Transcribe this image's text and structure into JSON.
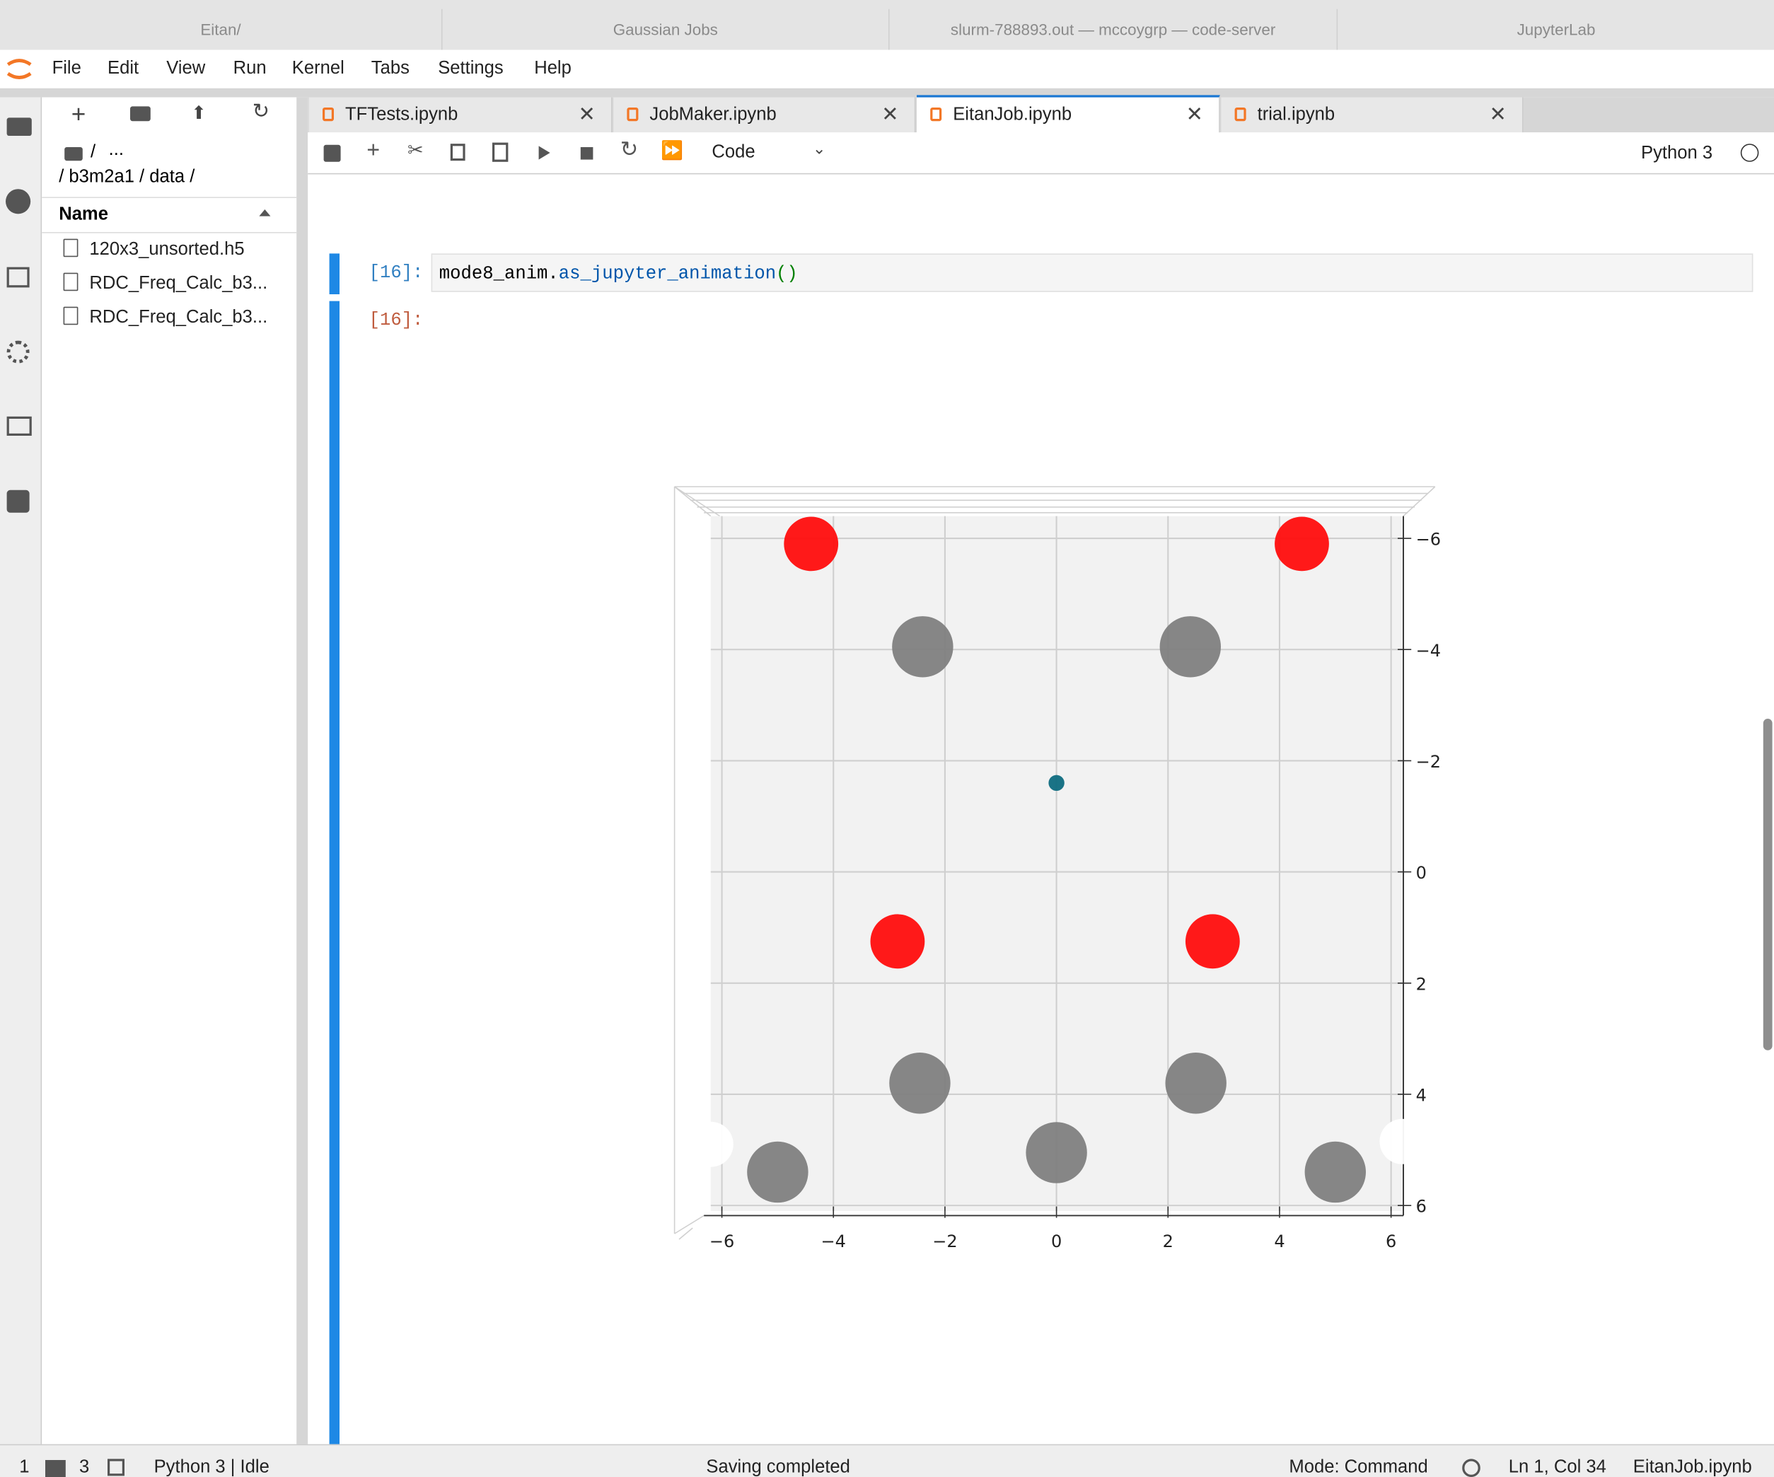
{
  "browser_tabs": [
    "Eitan/",
    "Gaussian Jobs",
    "slurm-788893.out — mccoygrp — code-server",
    "JupyterLab"
  ],
  "menu": [
    "File",
    "Edit",
    "View",
    "Run",
    "Kernel",
    "Tabs",
    "Settings",
    "Help"
  ],
  "file_browser": {
    "root": "/",
    "more": "...",
    "path": "/ b3m2a1 / data /",
    "column": "Name",
    "files": [
      "120x3_unsorted.h5",
      "RDC_Freq_Calc_b3...",
      "RDC_Freq_Calc_b3..."
    ]
  },
  "notebook_tabs": [
    "TFTests.ipynb",
    "JobMaker.ipynb",
    "EitanJob.ipynb",
    "trial.ipynb"
  ],
  "toolbar": {
    "cell_type": "Code",
    "kernel": "Python 3"
  },
  "cells": [
    {
      "prompt": "[16]:",
      "code_object": "mode8_anim.",
      "code_method": "as_jupyter_animation",
      "code_parens": "()"
    },
    {
      "prompt": "[16]:"
    }
  ],
  "chart_data": {
    "type": "scatter",
    "xlim": [
      -6.2,
      6.2
    ],
    "ylim": [
      -6.4,
      6.1
    ],
    "y_inverted": true,
    "grid": true,
    "xticks": [
      {
        "value": -6,
        "label": "−6"
      },
      {
        "value": -4,
        "label": "−4"
      },
      {
        "value": -2,
        "label": "−2"
      },
      0,
      2,
      4,
      6
    ],
    "yticks": [
      {
        "value": -6,
        "label": "−6"
      },
      {
        "value": -4,
        "label": "−4"
      },
      {
        "value": -2,
        "label": "−2"
      },
      0,
      2,
      4,
      6
    ],
    "series": [
      {
        "color": "#ff0d0d",
        "size": 24,
        "x": [
          -4.4,
          4.4,
          -2.85,
          2.8
        ],
        "values": [
          -5.9,
          -5.9,
          1.25,
          1.25
        ]
      },
      {
        "color": "#808080",
        "size": 27,
        "x": [
          -2.4,
          2.4,
          -2.45,
          2.5,
          -5.0,
          0.0,
          5.0
        ],
        "values": [
          -4.05,
          -4.05,
          3.8,
          3.8,
          5.4,
          5.05,
          5.4
        ]
      },
      {
        "color": "#ffffff",
        "size": 20,
        "x": [
          -6.2,
          6.2
        ],
        "values": [
          4.9,
          4.85
        ]
      },
      {
        "color": "#0e6b80",
        "size": 7,
        "x": [
          0.0
        ],
        "values": [
          -1.6
        ]
      }
    ]
  },
  "status_bar": {
    "terminals": "1",
    "kernels": "3",
    "kernel_status": "Python 3 | Idle",
    "message": "Saving completed",
    "mode": "Mode: Command",
    "position": "Ln 1, Col 34",
    "file": "EitanJob.ipynb"
  }
}
